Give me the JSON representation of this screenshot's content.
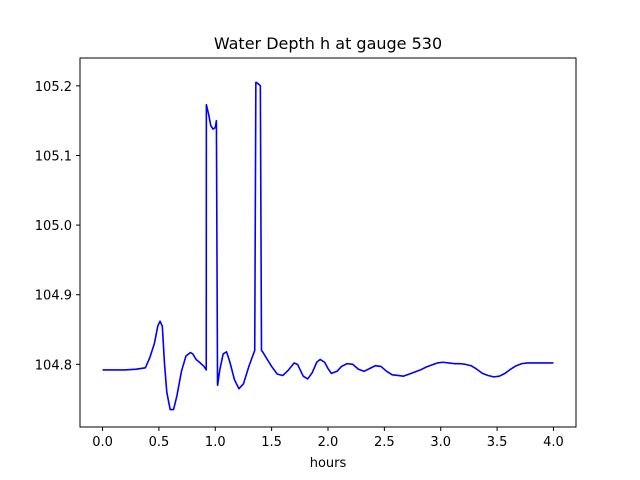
{
  "chart_data": {
    "type": "line",
    "title": "Water Depth h at gauge 530",
    "xlabel": "hours",
    "ylabel": "",
    "xlim": [
      -0.2,
      4.2
    ],
    "ylim": [
      104.71,
      105.24
    ],
    "xticks": [
      0.0,
      0.5,
      1.0,
      1.5,
      2.0,
      2.5,
      3.0,
      3.5,
      4.0
    ],
    "xtick_labels": [
      "0.0",
      "0.5",
      "1.0",
      "1.5",
      "2.0",
      "2.5",
      "3.0",
      "3.5",
      "4.0"
    ],
    "yticks": [
      104.8,
      104.9,
      105.0,
      105.1,
      105.2
    ],
    "ytick_labels": [
      "104.8",
      "104.9",
      "105.0",
      "105.1",
      "105.2"
    ],
    "grid": false,
    "legend": null,
    "series": [
      {
        "color": "#0000ff",
        "x": [
          0.0,
          0.1,
          0.2,
          0.3,
          0.38,
          0.42,
          0.46,
          0.49,
          0.51,
          0.53,
          0.55,
          0.57,
          0.6,
          0.63,
          0.66,
          0.7,
          0.74,
          0.78,
          0.8,
          0.83,
          0.86,
          0.9,
          0.92,
          0.921,
          0.94,
          0.96,
          0.98,
          1.0,
          1.01,
          1.02,
          1.021,
          1.04,
          1.07,
          1.1,
          1.13,
          1.17,
          1.21,
          1.25,
          1.3,
          1.35,
          1.36,
          1.365,
          1.38,
          1.4,
          1.41,
          1.42,
          1.45,
          1.5,
          1.55,
          1.6,
          1.65,
          1.7,
          1.73,
          1.78,
          1.82,
          1.86,
          1.9,
          1.93,
          1.97,
          2.0,
          2.03,
          2.08,
          2.12,
          2.17,
          2.22,
          2.27,
          2.32,
          2.37,
          2.42,
          2.47,
          2.52,
          2.57,
          2.62,
          2.67,
          2.72,
          2.77,
          2.82,
          2.87,
          2.92,
          2.97,
          3.02,
          3.07,
          3.12,
          3.17,
          3.22,
          3.27,
          3.32,
          3.37,
          3.42,
          3.47,
          3.52,
          3.57,
          3.62,
          3.67,
          3.72,
          3.77,
          3.82,
          3.87,
          3.92,
          3.97,
          4.0
        ],
        "y": [
          104.792,
          104.792,
          104.792,
          104.793,
          104.795,
          104.81,
          104.83,
          104.855,
          104.862,
          104.855,
          104.8,
          104.76,
          104.735,
          104.735,
          104.755,
          104.79,
          104.812,
          104.817,
          104.815,
          104.807,
          104.803,
          104.797,
          104.792,
          105.173,
          105.16,
          105.143,
          105.138,
          105.14,
          105.15,
          104.77,
          104.77,
          104.792,
          104.815,
          104.818,
          104.803,
          104.778,
          104.765,
          104.772,
          104.798,
          104.82,
          105.205,
          105.205,
          105.203,
          105.2,
          104.82,
          104.818,
          104.81,
          104.797,
          104.786,
          104.784,
          104.792,
          104.802,
          104.8,
          104.783,
          104.779,
          104.788,
          104.803,
          104.807,
          104.803,
          104.794,
          104.787,
          104.79,
          104.797,
          104.801,
          104.8,
          104.793,
          104.79,
          104.794,
          104.798,
          104.797,
          104.79,
          104.785,
          104.784,
          104.783,
          104.786,
          104.789,
          104.792,
          104.796,
          104.799,
          104.802,
          104.803,
          104.802,
          104.801,
          104.801,
          104.8,
          104.798,
          104.793,
          104.787,
          104.784,
          104.782,
          104.783,
          104.787,
          104.793,
          104.798,
          104.801,
          104.802,
          104.802,
          104.802,
          104.802,
          104.802,
          104.802
        ]
      }
    ]
  }
}
